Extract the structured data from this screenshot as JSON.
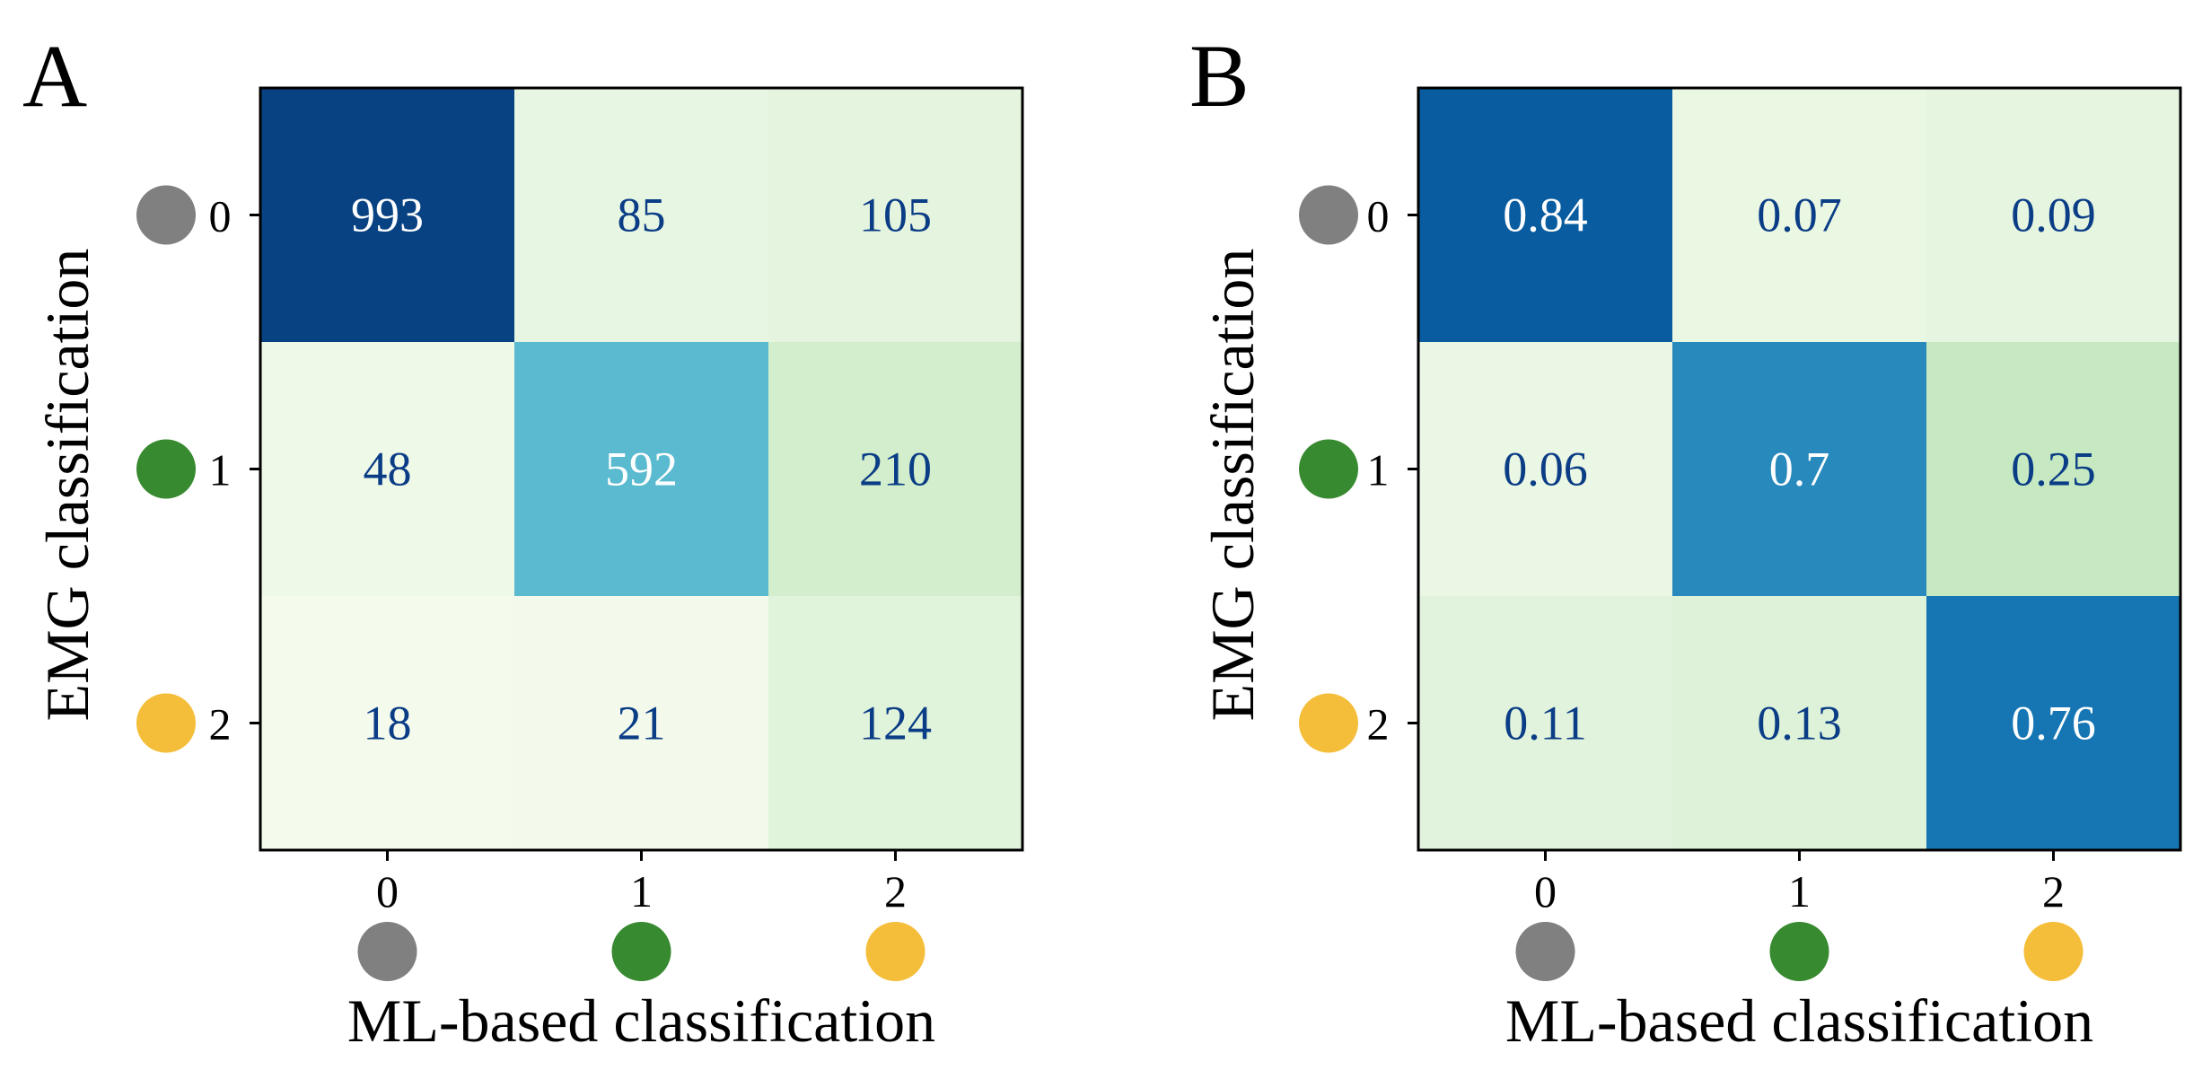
{
  "chart_data": [
    {
      "type": "heatmap",
      "panel_label": "A",
      "ylabel": "EMG classification",
      "xlabel": "ML-based classification",
      "x_ticks": [
        "0",
        "1",
        "2"
      ],
      "y_ticks": [
        "0",
        "1",
        "2"
      ],
      "values": [
        [
          993,
          85,
          105
        ],
        [
          48,
          592,
          210
        ],
        [
          18,
          21,
          124
        ]
      ],
      "labels": [
        [
          "993",
          "85",
          "105"
        ],
        [
          "48",
          "592",
          "210"
        ],
        [
          "18",
          "21",
          "124"
        ]
      ],
      "vmin": 0,
      "vmax": 1000,
      "colormap": "GnBu"
    },
    {
      "type": "heatmap",
      "panel_label": "B",
      "ylabel": "EMG classification",
      "xlabel": "ML-based classification",
      "x_ticks": [
        "0",
        "1",
        "2"
      ],
      "y_ticks": [
        "0",
        "1",
        "2"
      ],
      "values": [
        [
          0.84,
          0.07,
          0.09
        ],
        [
          0.06,
          0.7,
          0.25
        ],
        [
          0.11,
          0.13,
          0.76
        ]
      ],
      "labels": [
        [
          "0.84",
          "0.07",
          "0.09"
        ],
        [
          "0.06",
          "0.7",
          "0.25"
        ],
        [
          "0.11",
          "0.13",
          "0.76"
        ]
      ],
      "vmin": 0,
      "vmax": 0.92,
      "colormap": "GnBu"
    }
  ],
  "class_colors": [
    "#808080",
    "#378a2f",
    "#f5be3a"
  ],
  "text_colors": {
    "dark": "#0b3d86",
    "light": "#ffffff"
  }
}
